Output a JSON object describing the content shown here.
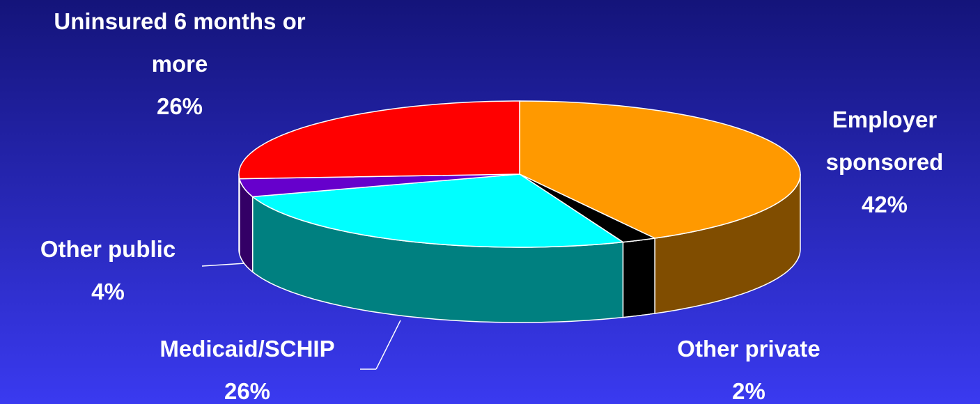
{
  "chart_data": {
    "type": "pie",
    "categories": [
      "Employer sponsored",
      "Other private",
      "Medicaid/SCHIP",
      "Other public",
      "Uninsured 6 months or more"
    ],
    "values": [
      42,
      2,
      26,
      4,
      26
    ],
    "value_labels": [
      "42%",
      "2%",
      "26%",
      "4%",
      "26%"
    ],
    "colors": [
      "#ff9900",
      "#000000",
      "#00ffff",
      "#6600cc",
      "#ff0000"
    ]
  }
}
